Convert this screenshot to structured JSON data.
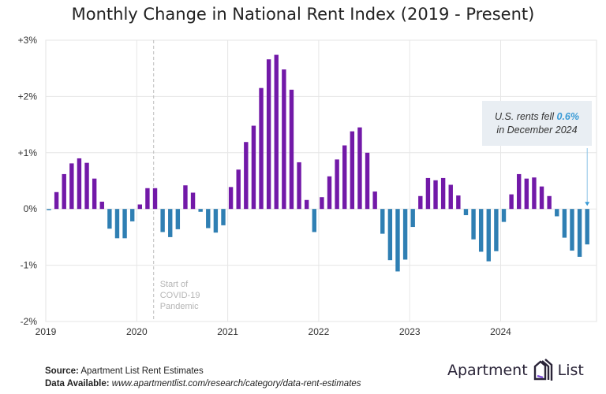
{
  "chart_data": {
    "type": "bar",
    "title": "Monthly Change in National Rent Index (2019 - Present)",
    "xlabel": "",
    "ylabel": "",
    "ylim": [
      -2,
      3
    ],
    "yticks": [
      "+3%",
      "+2%",
      "+1%",
      "0%",
      "-1%",
      "-2%"
    ],
    "ytick_values": [
      3,
      2,
      1,
      0,
      -1,
      -2
    ],
    "xticks": [
      "2019",
      "2020",
      "2021",
      "2022",
      "2023",
      "2024"
    ],
    "grid": true,
    "start_month": "2019-01",
    "colors": {
      "positive": "#7219a8",
      "negative": "#2f7fb3"
    },
    "values": [
      -0.02,
      0.3,
      0.62,
      0.81,
      0.9,
      0.82,
      0.54,
      0.13,
      -0.35,
      -0.52,
      -0.52,
      -0.22,
      0.08,
      0.37,
      0.37,
      -0.41,
      -0.5,
      -0.36,
      0.42,
      0.29,
      -0.05,
      -0.34,
      -0.42,
      -0.29,
      0.39,
      0.7,
      1.19,
      1.48,
      2.15,
      2.66,
      2.74,
      2.48,
      2.12,
      0.83,
      0.16,
      -0.41,
      0.21,
      0.58,
      0.88,
      1.13,
      1.38,
      1.45,
      1.0,
      0.31,
      -0.44,
      -0.91,
      -1.11,
      -0.9,
      -0.32,
      0.23,
      0.55,
      0.51,
      0.55,
      0.43,
      0.24,
      -0.11,
      -0.54,
      -0.76,
      -0.93,
      -0.75,
      -0.23,
      0.26,
      0.62,
      0.54,
      0.56,
      0.4,
      0.23,
      -0.13,
      -0.51,
      -0.74,
      -0.85,
      -0.63
    ],
    "event_marker": {
      "date": "2020-03",
      "label": [
        "Start of",
        "COVID-19",
        "Pandemic"
      ]
    },
    "annotation": {
      "line1_prefix": "U.S. rents fell ",
      "highlight": "0.6%",
      "line2": "in December 2024",
      "highlight_color": "#3a9bd6"
    }
  },
  "footer": {
    "source_label": "Source:",
    "source_text": " Apartment List Rent Estimates",
    "data_label": "Data Available:",
    "data_url": " www.apartmentlist.com/research/category/data-rent-estimates"
  },
  "logo": {
    "left": "Apartment",
    "right": "List",
    "icon": "building-stack-icon"
  }
}
